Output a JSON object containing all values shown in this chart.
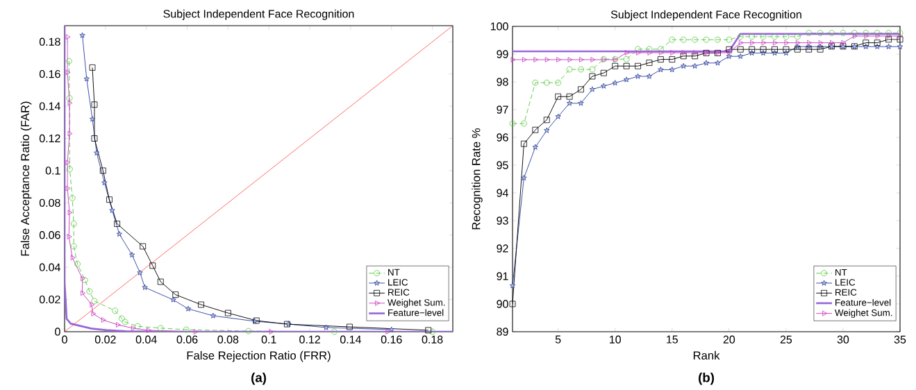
{
  "chart_data": [
    {
      "type": "line",
      "title": "Subject Independent Face Recognition",
      "xlabel": "False Rejection Ratio (FRR)",
      "ylabel": "False Acceptance Ratio (FAR)",
      "xlim": [
        0,
        0.19
      ],
      "ylim": [
        0,
        0.19
      ],
      "xticks": [
        0,
        0.02,
        0.04,
        0.06,
        0.08,
        0.1,
        0.12,
        0.14,
        0.16,
        0.18
      ],
      "yticks": [
        0,
        0.02,
        0.04,
        0.06,
        0.08,
        0.1,
        0.12,
        0.14,
        0.16,
        0.18
      ],
      "grid": false,
      "legend": "bottom right",
      "annotations": [
        "(a)"
      ],
      "series": [
        {
          "name": "NT",
          "color": "#55c83c",
          "marker": "circle",
          "line_style": "dashed",
          "x": [
            0.0022,
            0.0024,
            0.0025,
            0.0038,
            0.0045,
            0.0045,
            0.0063,
            0.01,
            0.0122,
            0.0146,
            0.0247,
            0.028,
            0.0296,
            0.0358,
            0.047,
            0.0595,
            0.09,
            0.132,
            0.18
          ],
          "values": [
            0.168,
            0.145,
            0.101,
            0.083,
            0.067,
            0.053,
            0.042,
            0.032,
            0.025,
            0.019,
            0.013,
            0.0082,
            0.006,
            0.0034,
            0.0022,
            0.0013,
            0.0004,
            0,
            0
          ]
        },
        {
          "name": "LEIC",
          "color": "#2e44a0",
          "marker": "star",
          "line_style": "solid",
          "x": [
            0.0087,
            0.0108,
            0.0136,
            0.0157,
            0.0195,
            0.0233,
            0.0268,
            0.033,
            0.0369,
            0.0393,
            0.0532,
            0.0605,
            0.0727,
            0.093,
            0.1096,
            0.128,
            0.16
          ],
          "values": [
            0.184,
            0.157,
            0.132,
            0.111,
            0.0925,
            0.0753,
            0.0606,
            0.0477,
            0.0366,
            0.0275,
            0.0198,
            0.0142,
            0.0099,
            0.0065,
            0.0047,
            0.0026,
            0.0013
          ]
        },
        {
          "name": "REIC",
          "color": "#000000",
          "marker": "square",
          "line_style": "solid",
          "x": [
            0.0136,
            0.0146,
            0.0146,
            0.0188,
            0.0219,
            0.0257,
            0.0383,
            0.0431,
            0.047,
            0.0543,
            0.0668,
            0.08,
            0.0939,
            0.1089,
            0.1395,
            0.178
          ],
          "values": [
            0.164,
            0.141,
            0.12,
            0.1,
            0.082,
            0.067,
            0.053,
            0.041,
            0.031,
            0.023,
            0.0168,
            0.0116,
            0.0069,
            0.0047,
            0.003,
            0.0009
          ]
        },
        {
          "name": "Weighet Sum.",
          "color": "#c83cc0",
          "marker": "triangle",
          "line_style": "solid",
          "x": [
            0.0014,
            0.0014,
            0.0024,
            0.0024,
            0.0014,
            0.0014,
            0.0024,
            0.0021,
            0.0038,
            0.0087,
            0.0087,
            0.0132,
            0.0139,
            0.0188,
            0.026,
            0.0334,
            0.041,
            0.064,
            0.101,
            0.158
          ],
          "values": [
            0.183,
            0.161,
            0.142,
            0.123,
            0.105,
            0.089,
            0.074,
            0.059,
            0.046,
            0.033,
            0.024,
            0.0168,
            0.0112,
            0.0073,
            0.0043,
            0.0022,
            0.0009,
            0,
            0,
            0
          ]
        },
        {
          "name": "Feature−level",
          "color": "#9966dd",
          "marker": "none",
          "line_style": "solid",
          "x": [
            0,
            0,
            0.0005,
            0.001,
            0.003,
            0.008,
            0.013,
            0.02,
            0.03,
            0.05,
            0.19
          ],
          "values": [
            0.19,
            0.03,
            0.02,
            0.008,
            0.005,
            0.0035,
            0.002,
            0.001,
            0.0003,
            0,
            0
          ]
        },
        {
          "color": "#ff2020",
          "marker": "none",
          "line_style": "solid",
          "x": [
            0,
            0.19
          ],
          "values": [
            0,
            0.19
          ]
        }
      ]
    },
    {
      "type": "line",
      "title": "Subject Independent Face Recognition",
      "xlabel": "Rank",
      "ylabel": "Recognition Rate %",
      "xlim": [
        1,
        35
      ],
      "ylim": [
        89,
        100
      ],
      "xticks": [
        5,
        10,
        15,
        20,
        25,
        30,
        35
      ],
      "yticks": [
        89,
        90,
        91,
        92,
        93,
        94,
        95,
        96,
        97,
        98,
        99,
        100
      ],
      "grid": false,
      "legend": "bottom right",
      "annotations": [
        "(b)"
      ],
      "x": [
        1,
        2,
        3,
        4,
        5,
        6,
        7,
        8,
        9,
        10,
        11,
        12,
        13,
        14,
        15,
        16,
        17,
        18,
        19,
        20,
        21,
        22,
        23,
        24,
        25,
        26,
        27,
        28,
        29,
        30,
        31,
        32,
        33,
        34,
        35
      ],
      "series": [
        {
          "name": "NT",
          "color": "#55c83c",
          "marker": "circle",
          "line_style": "dashed",
          "values": [
            96.5,
            96.5,
            97.97,
            97.97,
            97.97,
            98.45,
            98.45,
            98.45,
            98.82,
            98.82,
            98.82,
            99.18,
            99.18,
            99.18,
            99.52,
            99.52,
            99.52,
            99.52,
            99.52,
            99.52,
            99.63,
            99.63,
            99.63,
            99.63,
            99.63,
            99.63,
            99.76,
            99.76,
            99.76,
            99.76,
            99.76,
            99.76,
            99.76,
            99.76,
            99.76
          ]
        },
        {
          "name": "LEIC",
          "color": "#2e44a0",
          "marker": "star",
          "line_style": "solid",
          "values": [
            90.66,
            94.54,
            95.65,
            96.25,
            96.75,
            97.23,
            97.23,
            97.73,
            97.85,
            97.96,
            98.08,
            98.2,
            98.2,
            98.44,
            98.44,
            98.57,
            98.57,
            98.68,
            98.68,
            98.92,
            98.92,
            99.04,
            99.04,
            99.04,
            99.04,
            99.27,
            99.27,
            99.27,
            99.27,
            99.27,
            99.27,
            99.27,
            99.27,
            99.27,
            99.27
          ]
        },
        {
          "name": "REIC",
          "color": "#000000",
          "marker": "square",
          "line_style": "solid",
          "values": [
            90.0,
            95.77,
            96.27,
            96.63,
            97.47,
            97.47,
            97.73,
            98.2,
            98.32,
            98.57,
            98.57,
            98.57,
            98.69,
            98.81,
            98.81,
            98.93,
            98.93,
            99.04,
            99.04,
            99.17,
            99.17,
            99.17,
            99.17,
            99.17,
            99.17,
            99.17,
            99.17,
            99.17,
            99.28,
            99.28,
            99.28,
            99.41,
            99.41,
            99.53,
            99.53
          ]
        },
        {
          "name": "Feature−level",
          "color": "#9966dd",
          "marker": "none",
          "line_style": "solid",
          "values": [
            99.1,
            99.1,
            99.1,
            99.1,
            99.1,
            99.1,
            99.1,
            99.1,
            99.1,
            99.1,
            99.1,
            99.1,
            99.1,
            99.1,
            99.1,
            99.1,
            99.1,
            99.1,
            99.1,
            99.1,
            99.73,
            99.73,
            99.73,
            99.73,
            99.73,
            99.73,
            99.73,
            99.73,
            99.73,
            99.73,
            99.73,
            99.73,
            99.73,
            99.73,
            99.73
          ]
        },
        {
          "name": "Weighet Sum.",
          "color": "#c83cc0",
          "marker": "triangle",
          "line_style": "solid",
          "values": [
            98.8,
            98.8,
            98.8,
            98.8,
            98.8,
            98.8,
            98.8,
            98.8,
            98.8,
            98.8,
            99.05,
            99.05,
            99.05,
            99.05,
            99.05,
            99.05,
            99.05,
            99.05,
            99.05,
            99.05,
            99.41,
            99.41,
            99.41,
            99.41,
            99.41,
            99.41,
            99.41,
            99.41,
            99.41,
            99.41,
            99.65,
            99.65,
            99.65,
            99.65,
            99.65
          ]
        }
      ]
    }
  ]
}
